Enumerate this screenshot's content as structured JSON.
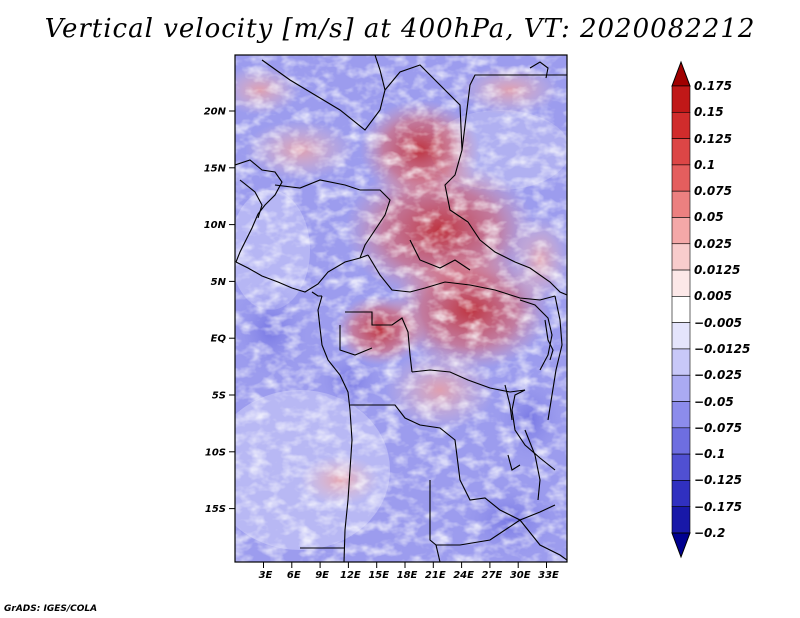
{
  "title": "Vertical velocity [m/s] at 400hPa, VT: 2020082212",
  "credit": "GrADS: IGES/COLA",
  "map": {
    "lat_labels": [
      "20N",
      "15N",
      "10N",
      "5N",
      "EQ",
      "5S",
      "10S",
      "15S"
    ],
    "lon_labels": [
      "3E",
      "6E",
      "9E",
      "12E",
      "15E",
      "18E",
      "21E",
      "24E",
      "27E",
      "30E",
      "33E"
    ]
  },
  "colorbar": {
    "labels": [
      "0.175",
      "0.15",
      "0.125",
      "0.1",
      "0.075",
      "0.05",
      "0.025",
      "0.0125",
      "0.005",
      "−0.005",
      "−0.0125",
      "−0.025",
      "−0.05",
      "−0.075",
      "−0.1",
      "−0.125",
      "−0.175",
      "−0.2"
    ],
    "colors": [
      "#a00000",
      "#c01818",
      "#d02c2c",
      "#dc4646",
      "#e45e5e",
      "#ec8080",
      "#f4a8a8",
      "#f8cccc",
      "#fce8e8",
      "#ffffff",
      "#e4e4fc",
      "#c8c8f8",
      "#aaaaf2",
      "#8c8cec",
      "#6e6ee0",
      "#5050d2",
      "#3030c0",
      "#1818a8",
      "#000090"
    ]
  }
}
